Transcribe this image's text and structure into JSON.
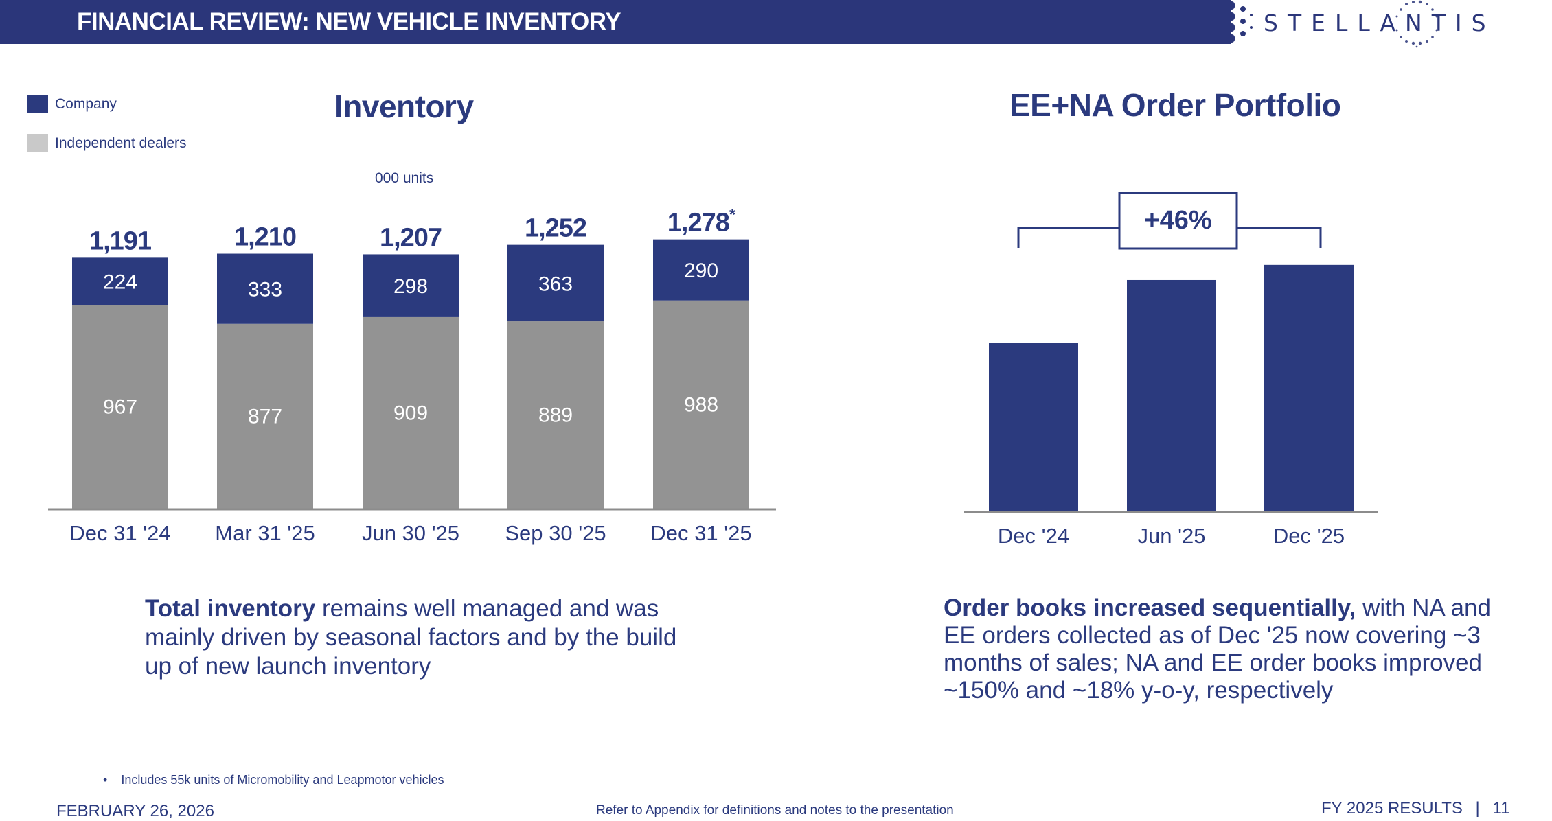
{
  "header": {
    "title": "FINANCIAL REVIEW: NEW VEHICLE INVENTORY",
    "logo_text": "STELLANTIS"
  },
  "legend": [
    {
      "label": "Company",
      "color": "#2B3A7E"
    },
    {
      "label": "Independent dealers",
      "color": "#C9C9C9"
    }
  ],
  "colors": {
    "brand_navy": "#2B367A",
    "company_bar": "#2B3A7E",
    "dealer_bar": "#939393",
    "axis": "#8C8C8C",
    "label_white": "#FFFFFF"
  },
  "chart_data": [
    {
      "type": "bar",
      "stacked": true,
      "title": "Inventory",
      "subtitle": "000 units",
      "xlabel": "",
      "ylabel": "",
      "categories": [
        "Dec 31 '24",
        "Mar 31 '25",
        "Jun 30 '25",
        "Sep 30 '25",
        "Dec 31 '25"
      ],
      "series": [
        {
          "name": "Independent dealers",
          "values": [
            967,
            877,
            909,
            889,
            988
          ]
        },
        {
          "name": "Company",
          "values": [
            224,
            333,
            298,
            363,
            290
          ]
        }
      ],
      "totals": [
        1191,
        1210,
        1207,
        1252,
        1278
      ],
      "total_labels": [
        "1,191",
        "1,210",
        "1,207",
        "1,252",
        "1,278"
      ],
      "total_label_marks": [
        "",
        "",
        "",
        "",
        "*"
      ],
      "ylim": [
        0,
        1400
      ],
      "grid": false,
      "legend_position": "top-left"
    },
    {
      "type": "bar",
      "title": "EE+NA Order Portfolio",
      "xlabel": "",
      "ylabel": "",
      "categories": [
        "Dec '24",
        "Jun '25",
        "Dec '25"
      ],
      "values": [
        100,
        137,
        146
      ],
      "value_note": "Relative index (Dec '24 = 100), estimated from bar heights; no values printed",
      "annotation": {
        "text": "+46%",
        "from": "Dec '24",
        "to": "Dec '25"
      },
      "ylim": [
        0,
        160
      ],
      "grid": false
    }
  ],
  "text": {
    "left_bold": "Total inventory",
    "left_rest": " remains well managed and was mainly driven by seasonal factors and by the build up of new launch inventory",
    "right_bold": "Order books increased sequentially,",
    "right_rest": " with NA and EE orders collected as of Dec '25 now covering ~3 months of sales; NA and EE order books improved ~150% and ~18% y-o-y, respectively"
  },
  "footnote": "Includes 55k units of Micromobility and Leapmotor vehicles",
  "footer": {
    "date": "FEBRUARY 26, 2026",
    "reference": "Refer to Appendix for definitions and notes to the presentation",
    "results": "FY 2025 RESULTS",
    "separator": "|",
    "page": "11"
  }
}
